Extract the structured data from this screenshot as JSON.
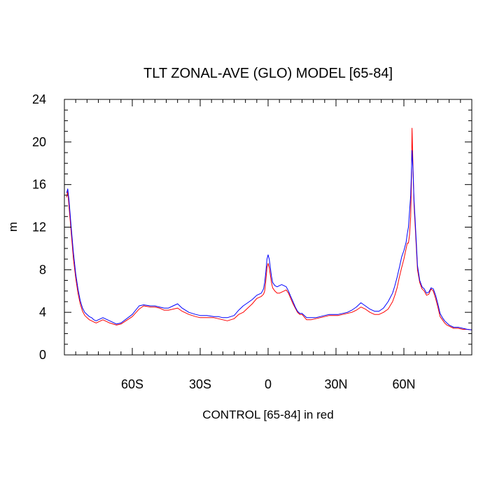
{
  "chart_data": {
    "type": "line",
    "title": "TLT ZONAL-AVE (GLO) MODEL [65-84]",
    "xlabel": "CONTROL [65-84] in red",
    "ylabel": "m",
    "xlim": [
      -90,
      90
    ],
    "ylim": [
      0,
      24
    ],
    "x_ticks": [
      {
        "value": -60,
        "label": "60S"
      },
      {
        "value": -30,
        "label": "30S"
      },
      {
        "value": 0,
        "label": "0"
      },
      {
        "value": 30,
        "label": "30N"
      },
      {
        "value": 60,
        "label": "60N"
      }
    ],
    "y_ticks": [
      {
        "value": 0,
        "label": "0"
      },
      {
        "value": 4,
        "label": "4"
      },
      {
        "value": 8,
        "label": "8"
      },
      {
        "value": 12,
        "label": "12"
      },
      {
        "value": 16,
        "label": "16"
      },
      {
        "value": 20,
        "label": "20"
      },
      {
        "value": 24,
        "label": "24"
      }
    ],
    "grid": false,
    "series": [
      {
        "color": "#ff0000",
        "x": [
          -89,
          -88.5,
          -88,
          -87,
          -86,
          -85,
          -84,
          -83,
          -82,
          -81,
          -80,
          -79,
          -78,
          -77,
          -76,
          -75,
          -73,
          -70,
          -67,
          -65,
          -60,
          -57,
          -55,
          -52,
          -50,
          -48,
          -46,
          -44,
          -42,
          -40,
          -38,
          -35,
          -32,
          -30,
          -27,
          -24,
          -22,
          -20,
          -18,
          -15,
          -13,
          -11,
          -9,
          -7,
          -5,
          -3,
          -2,
          -1.5,
          -1,
          -0.5,
          0,
          0.5,
          1,
          1.5,
          2,
          3,
          4,
          5,
          6,
          7,
          8,
          9,
          10,
          11,
          12,
          13,
          14,
          15,
          17,
          19,
          21,
          23,
          25,
          27,
          29,
          31,
          33,
          35,
          37,
          39,
          41,
          43,
          45,
          47,
          49,
          51,
          53,
          55,
          56,
          57,
          58,
          59,
          60,
          61,
          61.5,
          62,
          62.5,
          63,
          63.3,
          63.6,
          64,
          64.5,
          65,
          65.5,
          66,
          67,
          68,
          69,
          70,
          71,
          72,
          73,
          74,
          75,
          76,
          77,
          78,
          79,
          80,
          81,
          82,
          84,
          86,
          88,
          90
        ],
        "values": [
          14.8,
          15.4,
          14.0,
          11.5,
          9.0,
          7.2,
          5.8,
          4.8,
          4.1,
          3.7,
          3.5,
          3.3,
          3.2,
          3.1,
          3.0,
          3.1,
          3.3,
          3.0,
          2.8,
          2.9,
          3.6,
          4.3,
          4.6,
          4.5,
          4.5,
          4.4,
          4.2,
          4.2,
          4.3,
          4.4,
          4.1,
          3.8,
          3.6,
          3.5,
          3.5,
          3.5,
          3.4,
          3.3,
          3.2,
          3.4,
          3.8,
          4.0,
          4.4,
          4.8,
          5.3,
          5.5,
          5.7,
          6.0,
          7.0,
          8.2,
          8.6,
          8.2,
          7.5,
          6.8,
          6.3,
          6.0,
          5.8,
          5.8,
          5.9,
          6.0,
          6.1,
          5.8,
          5.3,
          4.8,
          4.4,
          4.0,
          3.8,
          3.8,
          3.3,
          3.3,
          3.4,
          3.5,
          3.6,
          3.7,
          3.7,
          3.7,
          3.8,
          3.9,
          4.0,
          4.2,
          4.5,
          4.3,
          4.0,
          3.8,
          3.8,
          4.0,
          4.3,
          5.0,
          5.6,
          6.3,
          7.3,
          8.2,
          9.0,
          10.0,
          10.5,
          10.5,
          11.3,
          13.0,
          16.0,
          21.3,
          18.0,
          14.0,
          12.0,
          10.0,
          8.0,
          6.8,
          6.2,
          6.0,
          5.6,
          5.7,
          6.2,
          6.0,
          5.3,
          4.5,
          3.6,
          3.3,
          3.0,
          2.8,
          2.7,
          2.6,
          2.5,
          2.5,
          2.4,
          2.4,
          2.35
        ]
      },
      {
        "color": "#0000ff",
        "x": [
          -89,
          -88.5,
          -88,
          -87,
          -86,
          -85,
          -84,
          -83,
          -82,
          -81,
          -80,
          -79,
          -78,
          -77,
          -76,
          -75,
          -73,
          -70,
          -67,
          -65,
          -60,
          -57,
          -55,
          -52,
          -50,
          -48,
          -46,
          -44,
          -42,
          -40,
          -38,
          -35,
          -32,
          -30,
          -27,
          -24,
          -22,
          -20,
          -18,
          -15,
          -13,
          -11,
          -9,
          -7,
          -5,
          -3,
          -2,
          -1.5,
          -1,
          -0.5,
          0,
          0.5,
          1,
          1.5,
          2,
          3,
          4,
          5,
          6,
          7,
          8,
          9,
          10,
          11,
          12,
          13,
          14,
          15,
          17,
          19,
          21,
          23,
          25,
          27,
          29,
          31,
          33,
          35,
          37,
          39,
          41,
          43,
          45,
          47,
          49,
          51,
          53,
          55,
          56,
          57,
          58,
          59,
          60,
          61,
          61.5,
          62,
          62.5,
          63,
          63.3,
          63.6,
          64,
          64.5,
          65,
          65.5,
          66,
          67,
          68,
          69,
          70,
          71,
          72,
          73,
          74,
          75,
          76,
          77,
          78,
          79,
          80,
          81,
          82,
          84,
          86,
          88,
          90
        ],
        "values": [
          15.2,
          15.6,
          14.6,
          12.0,
          9.6,
          7.6,
          6.2,
          5.1,
          4.4,
          4.0,
          3.8,
          3.6,
          3.5,
          3.3,
          3.2,
          3.3,
          3.5,
          3.2,
          2.9,
          3.0,
          3.8,
          4.6,
          4.7,
          4.6,
          4.6,
          4.5,
          4.4,
          4.4,
          4.6,
          4.8,
          4.4,
          4.0,
          3.8,
          3.7,
          3.7,
          3.6,
          3.6,
          3.5,
          3.5,
          3.7,
          4.2,
          4.6,
          4.9,
          5.2,
          5.6,
          5.8,
          6.2,
          6.8,
          7.8,
          9.0,
          9.4,
          9.0,
          8.2,
          7.4,
          6.8,
          6.5,
          6.4,
          6.5,
          6.6,
          6.5,
          6.4,
          6.0,
          5.5,
          5.0,
          4.5,
          4.1,
          3.9,
          3.9,
          3.5,
          3.5,
          3.5,
          3.6,
          3.7,
          3.8,
          3.8,
          3.8,
          3.9,
          4.0,
          4.2,
          4.5,
          4.9,
          4.6,
          4.3,
          4.1,
          4.1,
          4.4,
          5.0,
          5.8,
          6.5,
          7.3,
          8.2,
          9.2,
          9.8,
          10.6,
          11.4,
          12.0,
          13.5,
          15.0,
          17.0,
          19.2,
          17.5,
          14.5,
          12.5,
          10.5,
          8.4,
          7.0,
          6.4,
          6.2,
          5.8,
          5.9,
          6.3,
          6.2,
          5.6,
          4.8,
          3.9,
          3.5,
          3.2,
          3.0,
          2.8,
          2.7,
          2.6,
          2.6,
          2.5,
          2.4,
          2.35
        ]
      }
    ]
  }
}
